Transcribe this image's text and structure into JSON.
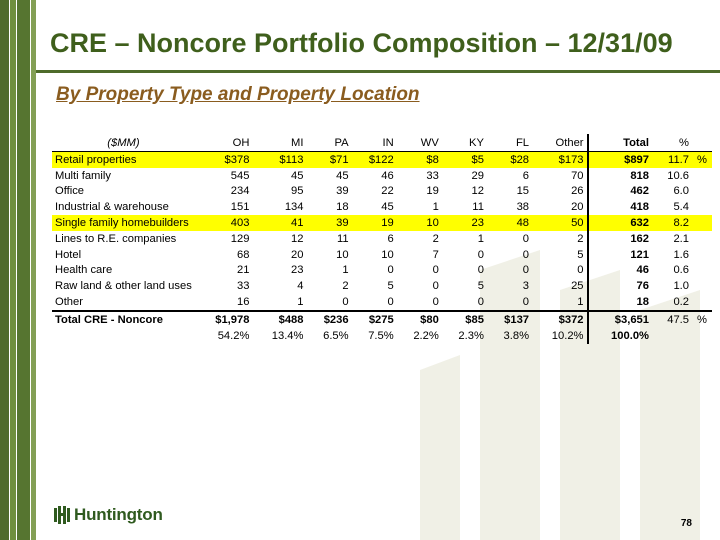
{
  "title": "CRE – Noncore Portfolio Composition – 12/31/09",
  "subtitle": "By Property Type and Property Location",
  "colors": {
    "title_green": "#3f5f1c",
    "subtitle_brown": "#8a5c1f",
    "highlight": "#ffff00",
    "brand_green": "#2f5a1f"
  },
  "table": {
    "headers": [
      "($MM)",
      "OH",
      "MI",
      "PA",
      "IN",
      "WV",
      "KY",
      "FL",
      "Other",
      "Total",
      "%",
      ""
    ],
    "rows": [
      {
        "cells": [
          "Retail properties",
          "$378",
          "$113",
          "$71",
          "$122",
          "$8",
          "$5",
          "$28",
          "$173",
          "$897",
          "11.7",
          "%"
        ],
        "highlight": true
      },
      {
        "cells": [
          "Multi family",
          "545",
          "45",
          "45",
          "46",
          "33",
          "29",
          "6",
          "70",
          "818",
          "10.6",
          ""
        ],
        "highlight": false
      },
      {
        "cells": [
          "Office",
          "234",
          "95",
          "39",
          "22",
          "19",
          "12",
          "15",
          "26",
          "462",
          "6.0",
          ""
        ],
        "highlight": false
      },
      {
        "cells": [
          "Industrial & warehouse",
          "151",
          "134",
          "18",
          "45",
          "1",
          "11",
          "38",
          "20",
          "418",
          "5.4",
          ""
        ],
        "highlight": false
      },
      {
        "cells": [
          "Single family homebuilders",
          "403",
          "41",
          "39",
          "19",
          "10",
          "23",
          "48",
          "50",
          "632",
          "8.2",
          ""
        ],
        "highlight": true
      },
      {
        "cells": [
          "Lines to R.E. companies",
          "129",
          "12",
          "11",
          "6",
          "2",
          "1",
          "0",
          "2",
          "162",
          "2.1",
          ""
        ],
        "highlight": false
      },
      {
        "cells": [
          "Hotel",
          "68",
          "20",
          "10",
          "10",
          "7",
          "0",
          "0",
          "5",
          "121",
          "1.6",
          ""
        ],
        "highlight": false
      },
      {
        "cells": [
          "Health care",
          "21",
          "23",
          "1",
          "0",
          "0",
          "0",
          "0",
          "0",
          "46",
          "0.6",
          ""
        ],
        "highlight": false
      },
      {
        "cells": [
          "Raw land & other land uses",
          "33",
          "4",
          "2",
          "5",
          "0",
          "5",
          "3",
          "25",
          "76",
          "1.0",
          ""
        ],
        "highlight": false
      },
      {
        "cells": [
          "Other",
          "16",
          "1",
          "0",
          "0",
          "0",
          "0",
          "0",
          "1",
          "18",
          "0.2",
          ""
        ],
        "highlight": false
      }
    ],
    "total_row": [
      "Total CRE - Noncore",
      "$1,978",
      "$488",
      "$236",
      "$275",
      "$80",
      "$85",
      "$137",
      "$372",
      "$3,651",
      "47.5",
      "%"
    ],
    "share_row": [
      "",
      "54.2%",
      "13.4%",
      "6.5%",
      "7.5%",
      "2.2%",
      "2.3%",
      "3.8%",
      "10.2%",
      "100.0%",
      "",
      ""
    ]
  },
  "logo": {
    "text": "Huntington",
    "icon": "huntington-logo-icon"
  },
  "page_number": "78"
}
